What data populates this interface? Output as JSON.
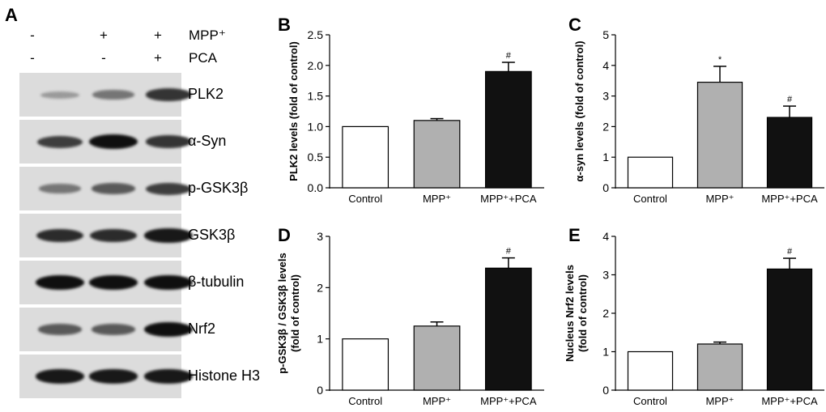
{
  "panelA": {
    "label": "A",
    "conditions": [
      {
        "name": "MPP⁺",
        "signs": [
          "-",
          "+",
          "+"
        ]
      },
      {
        "name": "PCA",
        "signs": [
          "-",
          "-",
          "+"
        ]
      }
    ],
    "blots": [
      {
        "label": "PLK2",
        "intensity": [
          0.25,
          0.45,
          0.8
        ]
      },
      {
        "label": "α-Syn",
        "intensity": [
          0.75,
          1.0,
          0.8
        ]
      },
      {
        "label": "p-GSK3β",
        "intensity": [
          0.45,
          0.6,
          0.75
        ]
      },
      {
        "label": "GSK3β",
        "intensity": [
          0.85,
          0.85,
          0.95
        ]
      },
      {
        "label": "β-tubulin",
        "intensity": [
          1.0,
          1.0,
          1.0
        ]
      },
      {
        "label": "Nrf2",
        "intensity": [
          0.6,
          0.6,
          1.0
        ]
      },
      {
        "label": "Histone H3",
        "intensity": [
          0.95,
          0.95,
          0.95
        ]
      }
    ]
  },
  "chart_data": [
    {
      "panel": "B",
      "type": "bar",
      "categories": [
        "Control",
        "MPP⁺",
        "MPP⁺+PCA"
      ],
      "values": [
        1.0,
        1.1,
        1.9
      ],
      "errors": [
        0,
        0.03,
        0.15
      ],
      "significance": [
        "",
        "",
        "#"
      ],
      "ylabel": "PLK2 levels (fold of control)",
      "ylim": [
        0,
        2.5
      ],
      "yticks": [
        "0.0",
        "0.5",
        "1.0",
        "1.5",
        "2.0",
        "2.5"
      ],
      "colors": [
        "#ffffff",
        "#b0b0b0",
        "#111111"
      ]
    },
    {
      "panel": "C",
      "type": "bar",
      "categories": [
        "Control",
        "MPP⁺",
        "MPP⁺+PCA"
      ],
      "values": [
        1.0,
        3.45,
        2.3
      ],
      "errors": [
        0,
        0.52,
        0.37
      ],
      "significance": [
        "",
        "*",
        "#"
      ],
      "ylabel": "α-syn levels (fold of control)",
      "ylim": [
        0,
        5
      ],
      "yticks": [
        "0",
        "1",
        "2",
        "3",
        "4",
        "5"
      ],
      "colors": [
        "#ffffff",
        "#b0b0b0",
        "#111111"
      ]
    },
    {
      "panel": "D",
      "type": "bar",
      "categories": [
        "Control",
        "MPP⁺",
        "MPP⁺+PCA"
      ],
      "values": [
        1.0,
        1.25,
        2.38
      ],
      "errors": [
        0,
        0.08,
        0.2
      ],
      "significance": [
        "",
        "",
        "#"
      ],
      "ylabel": "p-GSK3β / GSK3β levels (fold of control)",
      "ylim": [
        0,
        3
      ],
      "yticks": [
        "0",
        "1",
        "2",
        "3"
      ],
      "colors": [
        "#ffffff",
        "#b0b0b0",
        "#111111"
      ]
    },
    {
      "panel": "E",
      "type": "bar",
      "categories": [
        "Control",
        "MPP⁺",
        "MPP⁺+PCA"
      ],
      "values": [
        1.0,
        1.2,
        3.15
      ],
      "errors": [
        0,
        0.05,
        0.28
      ],
      "significance": [
        "",
        "",
        "#"
      ],
      "ylabel": "Nucleus Nrf2 levels (fold of control)",
      "ylim": [
        0,
        4
      ],
      "yticks": [
        "0",
        "1",
        "2",
        "3",
        "4"
      ],
      "colors": [
        "#ffffff",
        "#b0b0b0",
        "#111111"
      ]
    }
  ]
}
